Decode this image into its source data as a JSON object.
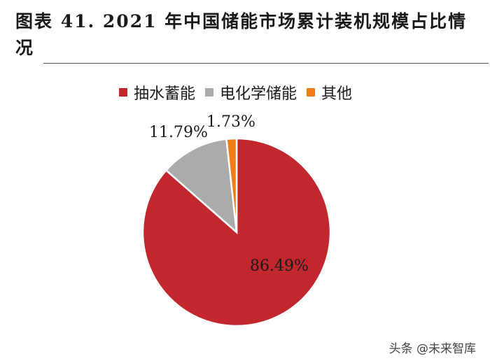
{
  "figure": {
    "title": "图表 41. 2021 年中国储能市场累计装机规模占比情况"
  },
  "chart_data": {
    "type": "pie",
    "title": "",
    "legend_position": "top",
    "slices": [
      {
        "name": "抽水蓄能",
        "value": 86.49,
        "label": "86.49%",
        "color": "#C1272D"
      },
      {
        "name": "电化学储能",
        "value": 11.79,
        "label": "11.79%",
        "color": "#ABABAB"
      },
      {
        "name": "其他",
        "value": 1.73,
        "label": "1.73%",
        "color": "#F07D1A"
      }
    ]
  },
  "watermark": {
    "text": "头条 @未来智库"
  }
}
